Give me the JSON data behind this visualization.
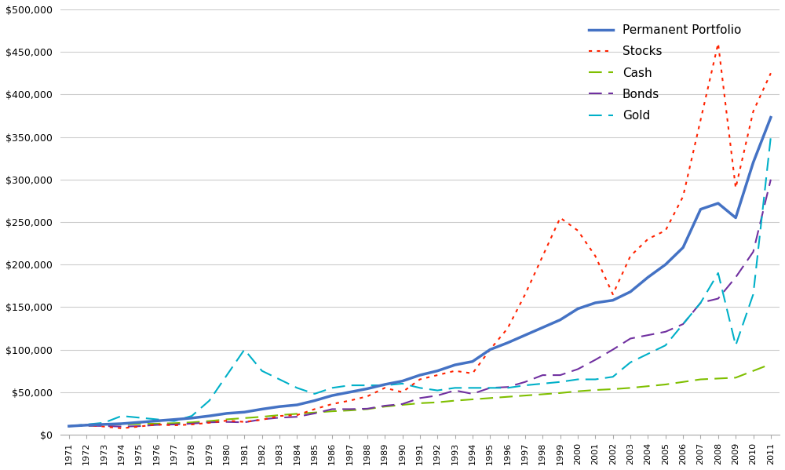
{
  "years": [
    1971,
    1972,
    1973,
    1974,
    1975,
    1976,
    1977,
    1978,
    1979,
    1980,
    1981,
    1982,
    1983,
    1984,
    1985,
    1986,
    1987,
    1988,
    1989,
    1990,
    1991,
    1992,
    1993,
    1994,
    1995,
    1996,
    1997,
    1998,
    1999,
    2000,
    2001,
    2002,
    2003,
    2004,
    2005,
    2006,
    2007,
    2008,
    2009,
    2010,
    2011
  ],
  "permanent_portfolio": [
    10000,
    11200,
    12100,
    12900,
    14500,
    16200,
    17800,
    19500,
    22000,
    25000,
    26500,
    30000,
    33000,
    35000,
    40000,
    46000,
    50000,
    54000,
    59000,
    63000,
    70000,
    75000,
    82000,
    86000,
    100000,
    108000,
    117000,
    126000,
    135000,
    148000,
    155000,
    158000,
    168000,
    185000,
    200000,
    220000,
    265000,
    272000,
    255000,
    320000,
    373000
  ],
  "stocks": [
    10000,
    11500,
    9500,
    7500,
    9500,
    12000,
    11000,
    12000,
    14000,
    16500,
    15000,
    17500,
    22000,
    23000,
    30000,
    36000,
    40000,
    45000,
    55000,
    50000,
    65000,
    70000,
    75000,
    72000,
    100000,
    125000,
    165000,
    210000,
    255000,
    240000,
    210000,
    165000,
    210000,
    230000,
    240000,
    280000,
    370000,
    460000,
    290000,
    380000,
    425000
  ],
  "cash": [
    10000,
    10500,
    11200,
    12000,
    12500,
    13000,
    13500,
    14500,
    16000,
    18000,
    19500,
    21000,
    23000,
    24500,
    26000,
    27500,
    28500,
    30000,
    33000,
    35000,
    37000,
    38000,
    40000,
    41500,
    43000,
    44500,
    46000,
    47500,
    49000,
    51000,
    52500,
    53500,
    55000,
    57000,
    59000,
    62000,
    65000,
    66000,
    67000,
    75000,
    83000
  ],
  "bonds": [
    10000,
    10500,
    10200,
    9500,
    10000,
    11500,
    12000,
    13000,
    14500,
    15000,
    14500,
    18000,
    20000,
    21000,
    25000,
    30000,
    30000,
    30500,
    34000,
    36000,
    43000,
    46000,
    52000,
    48000,
    55000,
    56000,
    62000,
    70000,
    70000,
    77000,
    88000,
    100000,
    113000,
    117000,
    121000,
    130000,
    155000,
    160000,
    185000,
    215000,
    300000
  ],
  "gold": [
    10000,
    12000,
    14000,
    22000,
    20000,
    18000,
    16000,
    22000,
    40000,
    70000,
    100000,
    75000,
    65000,
    55000,
    48000,
    55000,
    58000,
    58000,
    58000,
    60000,
    55000,
    52000,
    55000,
    55000,
    55000,
    55000,
    58000,
    60000,
    62000,
    65000,
    65000,
    68000,
    85000,
    95000,
    105000,
    130000,
    155000,
    190000,
    105000,
    165000,
    350000
  ],
  "permanent_portfolio_color": "#4472c4",
  "stocks_color": "#ff2200",
  "cash_color": "#7fbf00",
  "bonds_color": "#7030a0",
  "gold_color": "#00b0c8",
  "ylim": [
    0,
    500000
  ],
  "ytick_step": 50000,
  "background_color": "#ffffff",
  "grid_color": "#cccccc"
}
